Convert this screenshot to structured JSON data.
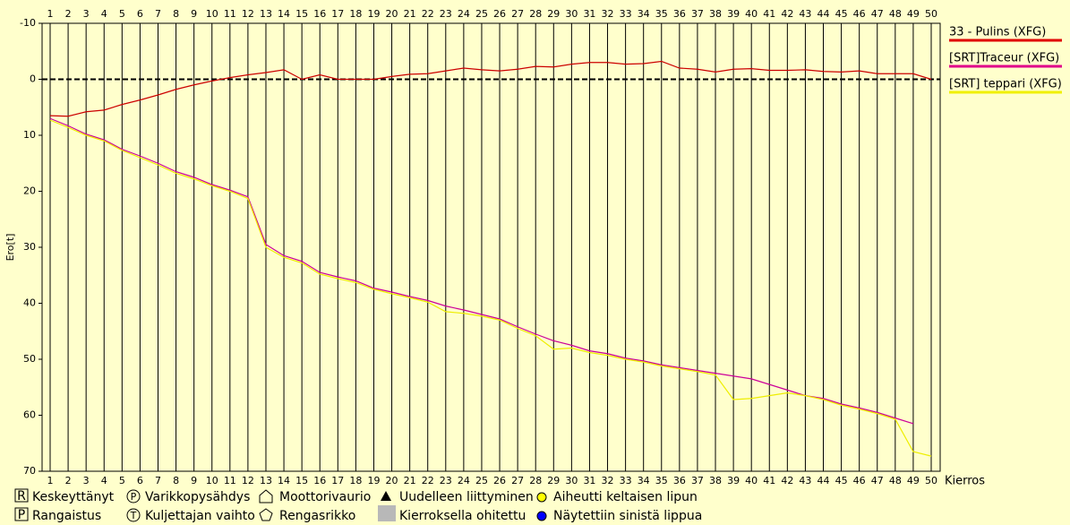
{
  "chart_data": {
    "type": "line",
    "x_label": "Kierros",
    "y_label": "Ero[t]",
    "x": [
      1,
      2,
      3,
      4,
      5,
      6,
      7,
      8,
      9,
      10,
      11,
      12,
      13,
      14,
      15,
      16,
      17,
      18,
      19,
      20,
      21,
      22,
      23,
      24,
      25,
      26,
      27,
      28,
      29,
      30,
      31,
      32,
      33,
      34,
      35,
      36,
      37,
      38,
      39,
      40,
      41,
      42,
      43,
      44,
      45,
      46,
      47,
      48,
      49,
      50
    ],
    "xlim": [
      1,
      50
    ],
    "xticks": [
      1,
      2,
      3,
      4,
      5,
      6,
      7,
      8,
      9,
      10,
      11,
      12,
      13,
      14,
      15,
      16,
      17,
      18,
      19,
      20,
      21,
      22,
      23,
      24,
      25,
      26,
      27,
      28,
      29,
      30,
      31,
      32,
      33,
      34,
      35,
      36,
      37,
      38,
      39,
      40,
      41,
      42,
      43,
      44,
      45,
      46,
      47,
      48,
      49,
      50
    ],
    "ylim": [
      -10,
      70
    ],
    "yticks": [
      -10,
      0,
      10,
      20,
      30,
      40,
      50,
      60,
      70
    ],
    "y_inverted": true,
    "grid": true,
    "legend_position": "right",
    "series": [
      {
        "name": "33 - Pulins (XFG)",
        "color": "#cc0000",
        "legend_color": "#e00000",
        "values": [
          6.5,
          6.6,
          5.8,
          5.5,
          4.5,
          3.7,
          2.8,
          1.8,
          1,
          0.3,
          -0.3,
          -0.8,
          -1.2,
          -1.7,
          0,
          -0.8,
          0,
          0,
          0,
          -0.5,
          -0.9,
          -1,
          -1.5,
          -2,
          -1.7,
          -1.5,
          -1.8,
          -2.3,
          -2.2,
          -2.7,
          -3,
          -3,
          -2.7,
          -2.8,
          -3.2,
          -2,
          -1.8,
          -1.3,
          -1.8,
          -1.9,
          -1.6,
          -1.6,
          -1.7,
          -1.4,
          -1.3,
          -1.5,
          -1,
          -1,
          -1,
          0
        ]
      },
      {
        "name": "[SRT]Traceur (XFG)",
        "color": "#cc0099",
        "legend_color": "#e0008a",
        "values": [
          7,
          8.3,
          9.8,
          10.8,
          12.5,
          13.7,
          15,
          16.5,
          17.5,
          18.8,
          19.8,
          21,
          29.5,
          31.5,
          32.5,
          34.5,
          35.3,
          36,
          37.3,
          38,
          38.8,
          39.5,
          40.5,
          41.2,
          42,
          42.8,
          44.2,
          45.5,
          46.7,
          47.5,
          48.5,
          49,
          49.8,
          50.3,
          51,
          51.5,
          52,
          52.5,
          53,
          53.5,
          54.5,
          55.5,
          56.5,
          57,
          58,
          58.7,
          59.5,
          60.5,
          61.5,
          null
        ]
      },
      {
        "name": "[SRT] teppari (XFG)",
        "color": "#eeee00",
        "legend_color": "#f0f000",
        "values": [
          7.3,
          8.6,
          10,
          11,
          12.7,
          14,
          15.3,
          16.8,
          17.8,
          19,
          20,
          21.3,
          30,
          31.8,
          32.8,
          34.8,
          35.6,
          36.3,
          37.5,
          38.3,
          39,
          39.8,
          41.5,
          41.8,
          42.3,
          43,
          44.5,
          45.8,
          48.2,
          48,
          48.8,
          49.3,
          50,
          50.5,
          51.2,
          51.7,
          52.2,
          52.8,
          57.2,
          57,
          56.5,
          56,
          56.5,
          57.2,
          58.2,
          58.9,
          59.7,
          60.7,
          66.5,
          67.3
        ]
      }
    ],
    "symbol_legend": [
      "Keskeyttänyt",
      "Varikkopysähdys",
      "Moottorivaurio",
      "Uudelleen liittyminen",
      "Aiheutti keltaisen lipun",
      "Rangaistus",
      "Kuljettajan vaihto",
      "Rengasrikko",
      "Kierroksella ohitettu",
      "Näytettiin sinistä lippua"
    ]
  }
}
